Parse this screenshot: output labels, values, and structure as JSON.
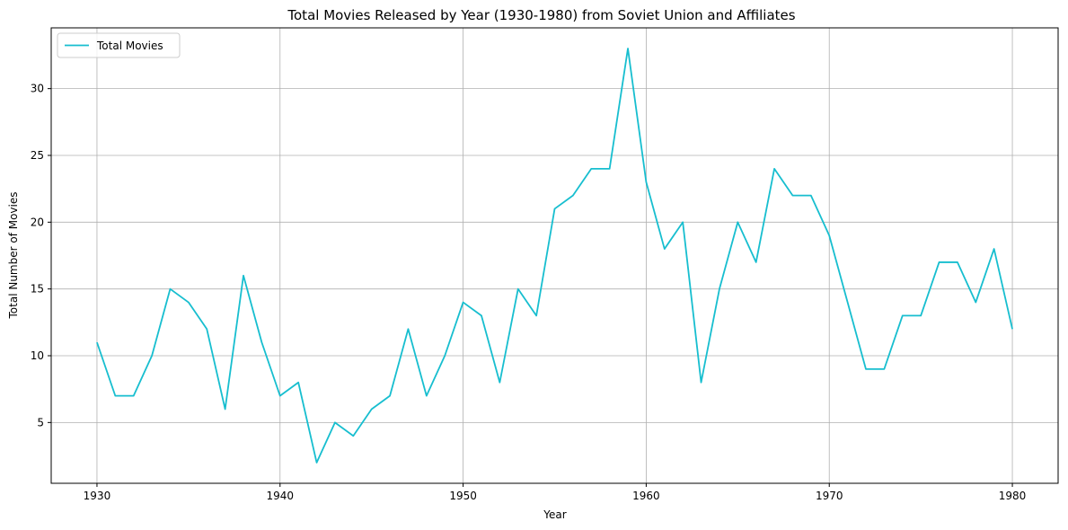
{
  "chart_data": {
    "type": "line",
    "title": "Total Movies Released by Year (1930-1980) from Soviet Union and Affiliates",
    "xlabel": "Year",
    "ylabel": "Total Number of Movies",
    "xlim": [
      1927.5,
      1982.5
    ],
    "ylim": [
      0.45,
      34.55
    ],
    "xticks": [
      1930,
      1940,
      1950,
      1960,
      1970,
      1980
    ],
    "yticks": [
      5,
      10,
      15,
      20,
      25,
      30
    ],
    "grid": true,
    "legend_position": "top-left",
    "series": [
      {
        "name": "Total Movies",
        "color": "#17becf",
        "x": [
          1930,
          1931,
          1932,
          1933,
          1934,
          1935,
          1936,
          1937,
          1938,
          1939,
          1940,
          1941,
          1942,
          1943,
          1944,
          1945,
          1946,
          1947,
          1948,
          1949,
          1950,
          1951,
          1952,
          1953,
          1954,
          1955,
          1956,
          1957,
          1958,
          1959,
          1960,
          1961,
          1962,
          1963,
          1964,
          1965,
          1966,
          1967,
          1968,
          1969,
          1970,
          1971,
          1972,
          1973,
          1974,
          1975,
          1976,
          1977,
          1978,
          1979,
          1980
        ],
        "y": [
          11,
          7,
          7,
          10,
          15,
          14,
          12,
          6,
          16,
          11,
          7,
          8,
          2,
          5,
          4,
          6,
          7,
          12,
          7,
          10,
          14,
          13,
          8,
          15,
          13,
          21,
          22,
          24,
          24,
          33,
          23,
          18,
          20,
          8,
          15,
          20,
          17,
          24,
          22,
          22,
          19,
          14,
          9,
          9,
          13,
          13,
          17,
          17,
          14,
          18,
          12
        ]
      }
    ]
  }
}
